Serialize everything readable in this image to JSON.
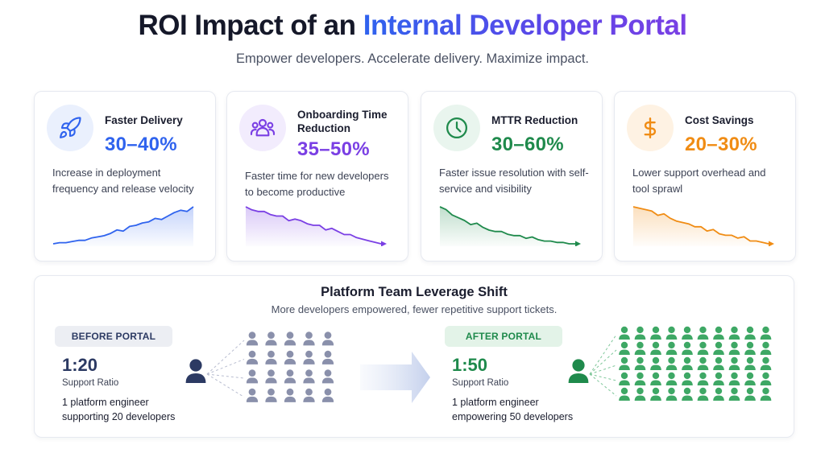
{
  "header": {
    "title_prefix": "ROI Impact of an",
    "title_highlight": "Internal Developer Portal",
    "subtitle": "Empower developers. Accelerate delivery. Maximize impact."
  },
  "cards": [
    {
      "title": "Faster Delivery",
      "stat": "30–40%",
      "description": "Increase in deployment frequency and release velocity",
      "icon": "rocket-icon",
      "color": "#2f63ee",
      "icon_bg": "#eaf0fd",
      "trend": "up",
      "series": [
        2,
        3,
        3,
        4,
        5,
        5,
        7,
        8,
        9,
        11,
        14,
        13,
        17,
        18,
        20,
        21,
        24,
        23,
        26,
        29,
        31,
        30,
        34
      ]
    },
    {
      "title": "Onboarding Time Reduction",
      "stat": "35–50%",
      "description": "Faster time for new developers to become productive",
      "icon": "team-icon",
      "color": "#7a3fe4",
      "icon_bg": "#f2ecfd",
      "trend": "down",
      "series": [
        30,
        28,
        27,
        27,
        25,
        24,
        24,
        21,
        22,
        21,
        19,
        18,
        18,
        15,
        16,
        14,
        12,
        12,
        10,
        9,
        8,
        7,
        6
      ]
    },
    {
      "title": "MTTR Reduction",
      "stat": "30–60%",
      "description": "Faster issue resolution with self-service and visibility",
      "icon": "clock-icon",
      "color": "#1f8a4c",
      "icon_bg": "#e9f5ee",
      "trend": "down",
      "series": [
        32,
        30,
        26,
        24,
        22,
        19,
        20,
        17,
        15,
        14,
        14,
        12,
        11,
        11,
        9,
        10,
        8,
        7,
        7,
        6,
        6,
        5,
        5
      ]
    },
    {
      "title": "Cost Savings",
      "stat": "20–30%",
      "description": "Lower support overhead and tool sprawl",
      "icon": "dollar-icon",
      "color": "#f08c14",
      "icon_bg": "#fef2e3",
      "trend": "down",
      "series": [
        32,
        31,
        30,
        29,
        26,
        27,
        24,
        22,
        21,
        20,
        18,
        18,
        15,
        16,
        13,
        12,
        12,
        10,
        11,
        8,
        8,
        7,
        6
      ]
    }
  ],
  "leverage": {
    "title": "Platform Team Leverage Shift",
    "subtitle": "More developers empowered, fewer repetitive support tickets.",
    "before": {
      "label": "BEFORE PORTAL",
      "ratio": "1:20",
      "ratio_label": "Support Ratio",
      "desc_line1": "1 platform engineer",
      "desc_line2": "supporting 20 developers",
      "developers": 20,
      "color": "#2c3a63",
      "dev_color": "#8a90ab",
      "pill_bg": "#eceef3"
    },
    "after": {
      "label": "AFTER PORTAL",
      "ratio": "1:50",
      "ratio_label": "Support Ratio",
      "desc_line1": "1 platform engineer",
      "desc_line2": "empowering 50 developers",
      "developers": 50,
      "color": "#1f8a4c",
      "dev_color": "#3ea865",
      "pill_bg": "#e3f3e8"
    }
  }
}
